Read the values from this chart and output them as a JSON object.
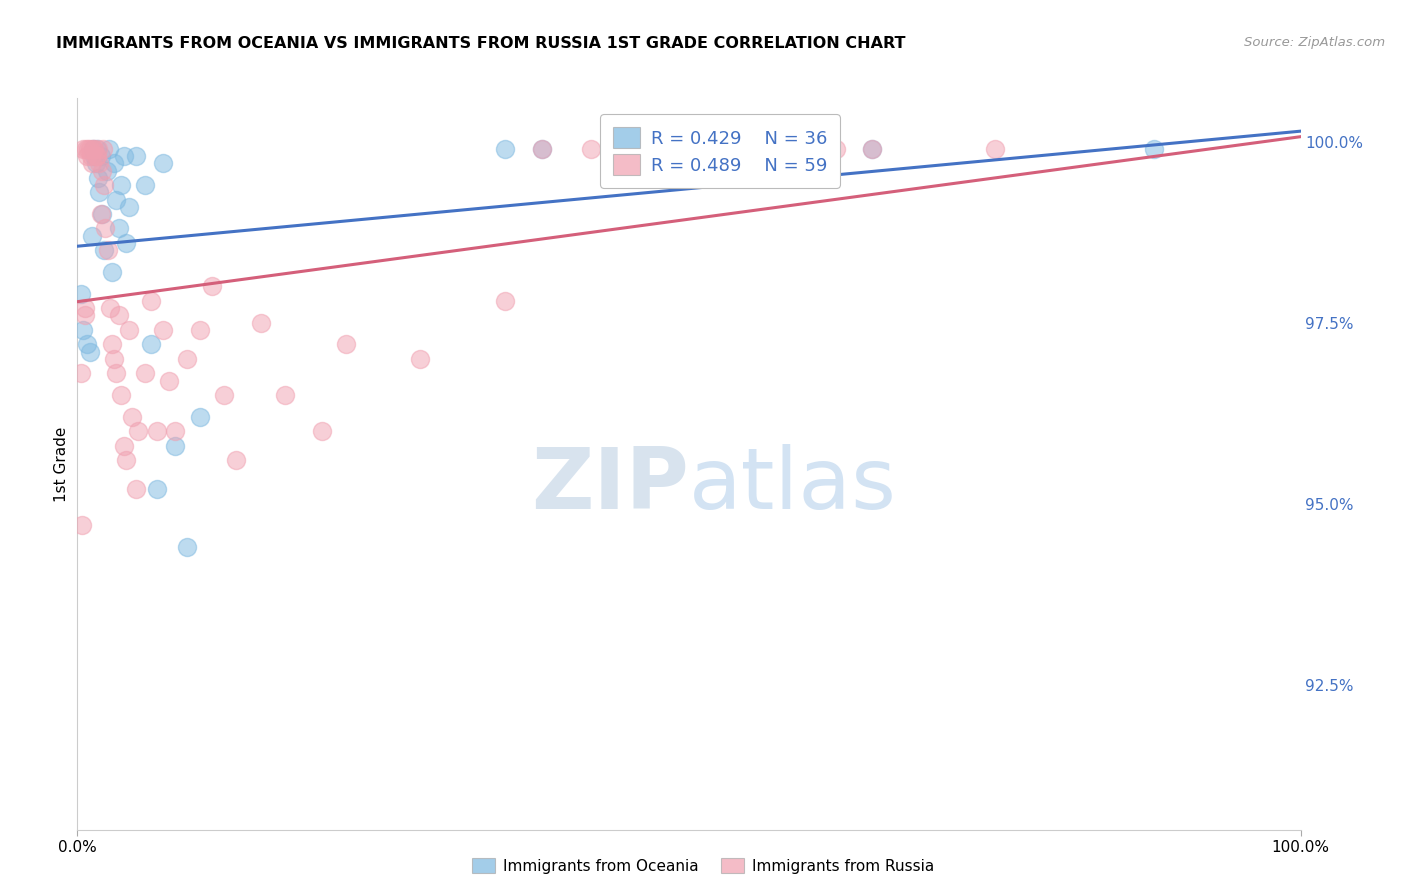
{
  "title": "IMMIGRANTS FROM OCEANIA VS IMMIGRANTS FROM RUSSIA 1ST GRADE CORRELATION CHART",
  "source": "Source: ZipAtlas.com",
  "ylabel": "1st Grade",
  "legend1_r": "R = 0.429",
  "legend1_n": "N = 36",
  "legend2_r": "R = 0.489",
  "legend2_n": "N = 59",
  "oceania_color": "#7db8e0",
  "russia_color": "#f0a0b0",
  "oceania_line_color": "#4472c4",
  "russia_line_color": "#d45f7a",
  "watermark_zip": "ZIP",
  "watermark_atlas": "atlas",
  "xlim": [
    0.0,
    1.0
  ],
  "ylim": [
    0.905,
    1.006
  ],
  "yticks": [
    1.0,
    0.975,
    0.95,
    0.925
  ],
  "ytick_labels": [
    "100.0%",
    "97.5%",
    "95.0%",
    "92.5%"
  ],
  "xtick_labels": [
    "0.0%",
    "100.0%"
  ],
  "oceania_x": [
    0.003,
    0.005,
    0.008,
    0.01,
    0.012,
    0.013,
    0.014,
    0.015,
    0.016,
    0.017,
    0.018,
    0.019,
    0.02,
    0.022,
    0.024,
    0.026,
    0.028,
    0.03,
    0.032,
    0.034,
    0.036,
    0.038,
    0.04,
    0.042,
    0.048,
    0.055,
    0.06,
    0.065,
    0.07,
    0.08,
    0.09,
    0.1,
    0.35,
    0.38,
    0.65,
    0.88
  ],
  "oceania_y": [
    0.979,
    0.974,
    0.972,
    0.971,
    0.987,
    0.999,
    0.998,
    0.997,
    0.999,
    0.995,
    0.993,
    0.998,
    0.99,
    0.985,
    0.996,
    0.999,
    0.982,
    0.997,
    0.992,
    0.988,
    0.994,
    0.998,
    0.986,
    0.991,
    0.998,
    0.994,
    0.972,
    0.952,
    0.997,
    0.958,
    0.944,
    0.962,
    0.999,
    0.999,
    0.999,
    0.999
  ],
  "russia_x": [
    0.003,
    0.005,
    0.006,
    0.007,
    0.008,
    0.009,
    0.01,
    0.011,
    0.012,
    0.013,
    0.014,
    0.015,
    0.016,
    0.017,
    0.018,
    0.019,
    0.02,
    0.021,
    0.022,
    0.023,
    0.025,
    0.027,
    0.028,
    0.03,
    0.032,
    0.034,
    0.036,
    0.038,
    0.04,
    0.042,
    0.045,
    0.048,
    0.05,
    0.055,
    0.06,
    0.065,
    0.07,
    0.075,
    0.08,
    0.09,
    0.1,
    0.11,
    0.12,
    0.13,
    0.15,
    0.17,
    0.2,
    0.22,
    0.28,
    0.35,
    0.38,
    0.42,
    0.5,
    0.55,
    0.62,
    0.65,
    0.75,
    0.004,
    0.006
  ],
  "russia_y": [
    0.968,
    0.999,
    0.977,
    0.999,
    0.998,
    0.999,
    0.999,
    0.998,
    0.997,
    0.999,
    0.999,
    0.998,
    0.998,
    0.999,
    0.997,
    0.99,
    0.996,
    0.999,
    0.994,
    0.988,
    0.985,
    0.977,
    0.972,
    0.97,
    0.968,
    0.976,
    0.965,
    0.958,
    0.956,
    0.974,
    0.962,
    0.952,
    0.96,
    0.968,
    0.978,
    0.96,
    0.974,
    0.967,
    0.96,
    0.97,
    0.974,
    0.98,
    0.965,
    0.956,
    0.975,
    0.965,
    0.96,
    0.972,
    0.97,
    0.978,
    0.999,
    0.999,
    0.999,
    0.999,
    0.999,
    0.999,
    0.999,
    0.947,
    0.976
  ]
}
